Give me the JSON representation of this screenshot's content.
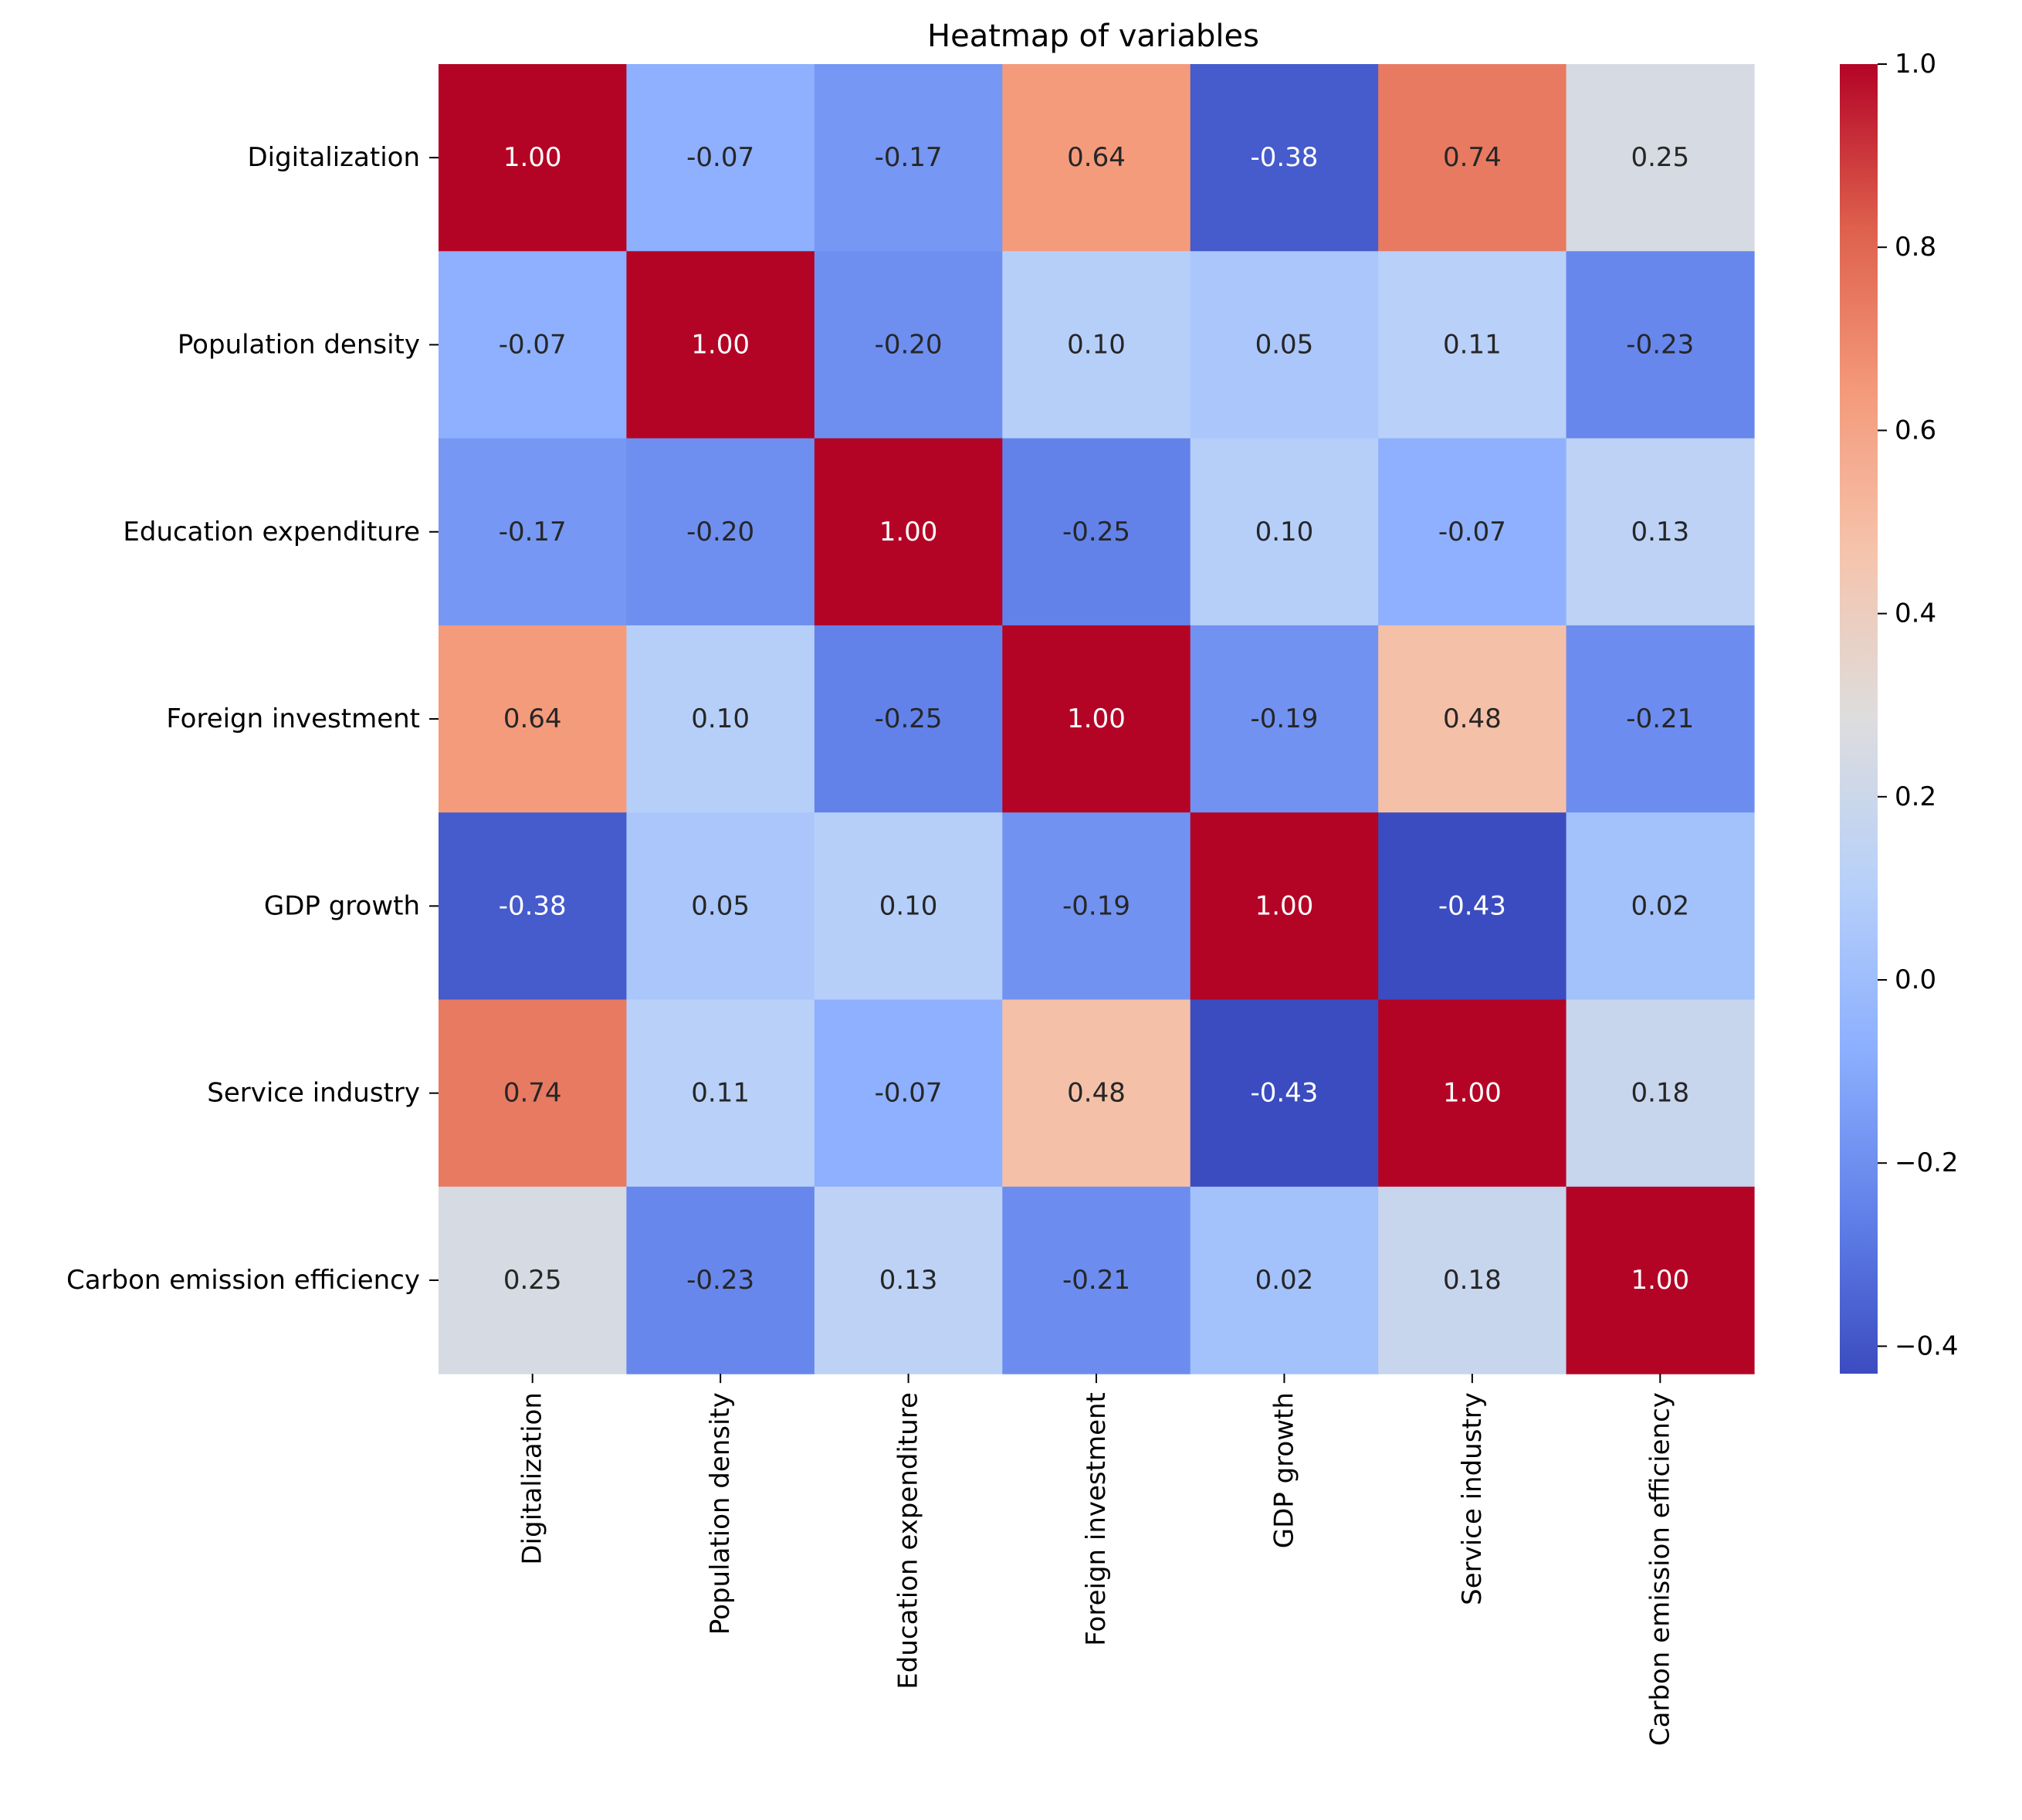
{
  "chart_data": {
    "type": "heatmap",
    "title": "Heatmap of variables",
    "xlabel": "",
    "ylabel": "",
    "categories": [
      "Digitalization",
      "Population density",
      "Education expenditure",
      "Foreign investment",
      "GDP growth",
      "Service industry",
      "Carbon emission efficiency"
    ],
    "matrix": [
      [
        1.0,
        -0.07,
        -0.17,
        0.64,
        -0.38,
        0.74,
        0.25
      ],
      [
        -0.07,
        1.0,
        -0.2,
        0.1,
        0.05,
        0.11,
        -0.23
      ],
      [
        -0.17,
        -0.2,
        1.0,
        -0.25,
        0.1,
        -0.07,
        0.13
      ],
      [
        0.64,
        0.1,
        -0.25,
        1.0,
        -0.19,
        0.48,
        -0.21
      ],
      [
        -0.38,
        0.05,
        0.1,
        -0.19,
        1.0,
        -0.43,
        0.02
      ],
      [
        0.74,
        0.11,
        -0.07,
        0.48,
        -0.43,
        1.0,
        0.18
      ],
      [
        0.25,
        -0.23,
        0.13,
        -0.21,
        0.02,
        0.18,
        1.0
      ]
    ],
    "value_format": "2 decimals",
    "colormap": "coolwarm",
    "colorbar": {
      "vmin": -0.43,
      "vmax": 1.0,
      "ticks": [
        -0.4,
        -0.2,
        0.0,
        0.2,
        0.4,
        0.6,
        0.8,
        1.0
      ],
      "tick_labels": [
        "−0.4",
        "−0.2",
        "0.0",
        "0.2",
        "0.4",
        "0.6",
        "0.8",
        "1.0"
      ]
    }
  }
}
